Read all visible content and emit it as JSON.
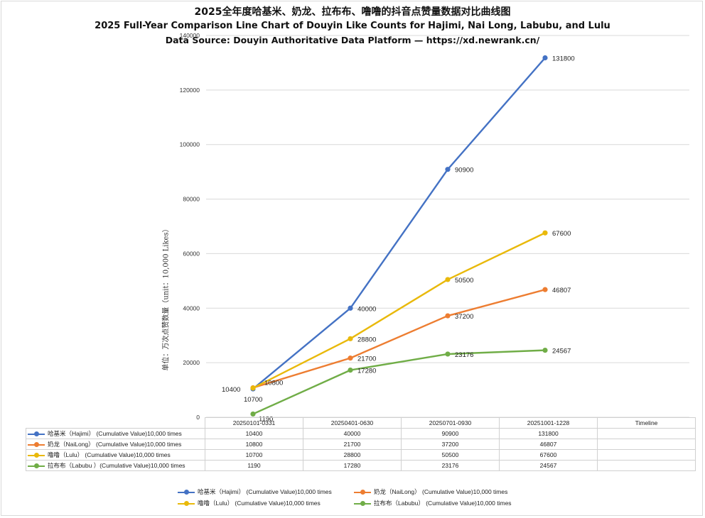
{
  "title": "2025全年度哈基米、奶龙、拉布布、噜噜的抖音点赞量数据对比曲线图",
  "subtitle": "2025 Full-Year Comparison Line Chart of Douyin Like Counts for Hajimi, Nai Long, Labubu, and Lulu",
  "source": "Data Source: Douyin Authoritative Data Platform — https://xd.newrank.cn/",
  "chart_data": {
    "type": "line",
    "title": "2025全年度哈基米、奶龙、拉布布、噜噜的抖音点赞量数据对比曲线图",
    "ylabel": "单位：万次点赞数量（unit：10,000 Likes）",
    "xlabel": "Timeline",
    "categories": [
      "20250101-0331",
      "20250401-0630",
      "20250701-0930",
      "20251001-1228"
    ],
    "ylim": [
      0,
      140000
    ],
    "yticks": [
      "0",
      "20000",
      "40000",
      "60000",
      "80000",
      "100000",
      "120000",
      "140000"
    ],
    "grid": true,
    "legend_position": "bottom",
    "series": [
      {
        "name": "哈基米（Hajimi） (Cumulative Value)10,000 times",
        "color": "#4472C4",
        "values": [
          10400,
          40000,
          90900,
          131800
        ]
      },
      {
        "name": "奶龙（NaiLong） (Cumulative Value)10,000 times",
        "color": "#ED7D31",
        "values": [
          10800,
          21700,
          37200,
          46807
        ]
      },
      {
        "name": "噜噜（Lulu） (Cumulative Value)10,000 times",
        "color": "#E9B90B",
        "values": [
          10700,
          28800,
          50500,
          67600
        ]
      },
      {
        "name": "拉布布（Labubu ）(Cumulative Value)10,000 times",
        "color": "#70AD47",
        "values": [
          1190,
          17280,
          23176,
          24567
        ]
      }
    ],
    "legend_labels": [
      "哈基米（Hajimi） (Cumulative Value)10,000 times",
      "奶龙（NaiLong） (Cumulative Value)10,000 times",
      "噜噜（Lulu） (Cumulative Value)10,000 times",
      "拉布布（Labubu） (Cumulative Value)10,000 times"
    ]
  }
}
